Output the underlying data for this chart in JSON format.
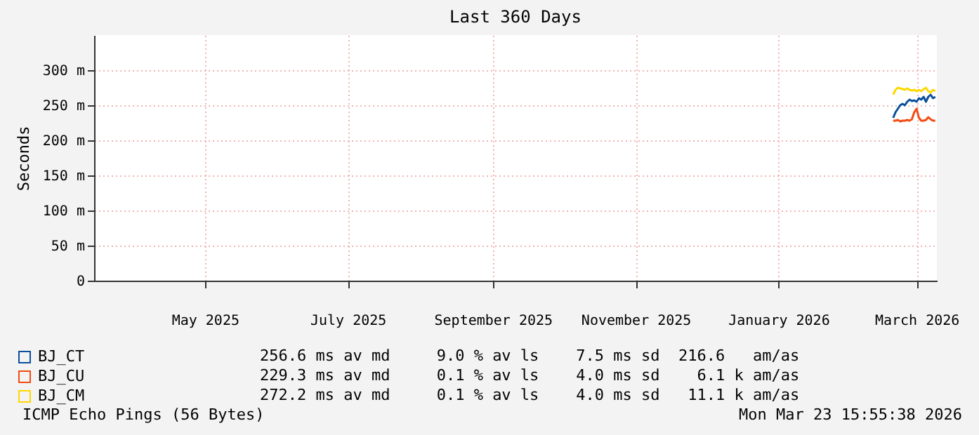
{
  "chart_data": {
    "type": "line",
    "title": "Last 360 Days",
    "ylabel": "Seconds",
    "x": [
      "2026-03-05",
      "2026-03-06",
      "2026-03-07",
      "2026-03-08",
      "2026-03-09",
      "2026-03-10",
      "2026-03-11",
      "2026-03-12",
      "2026-03-13",
      "2026-03-14",
      "2026-03-15",
      "2026-03-16",
      "2026-03-17",
      "2026-03-18",
      "2026-03-19",
      "2026-03-20",
      "2026-03-21",
      "2026-03-22",
      "2026-03-23"
    ],
    "series": [
      {
        "name": "BJ_CT",
        "color": "#0b4f9c",
        "values": [
          232,
          240,
          245,
          250,
          252,
          250,
          255,
          258,
          256,
          257,
          255,
          260,
          258,
          262,
          255,
          262,
          265,
          260,
          262
        ]
      },
      {
        "name": "BJ_CU",
        "color": "#f24b12",
        "values": [
          228,
          228,
          229,
          227,
          228,
          228,
          229,
          228,
          230,
          240,
          245,
          232,
          228,
          228,
          229,
          233,
          230,
          228,
          228
        ]
      },
      {
        "name": "BJ_CM",
        "color": "#ffd800",
        "values": [
          265,
          272,
          275,
          274,
          273,
          272,
          274,
          272,
          271,
          272,
          270,
          272,
          270,
          273,
          275,
          270,
          268,
          272,
          270
        ]
      }
    ],
    "xlim": [
      "2025-03-28T15:55",
      "2026-03-23T15:55"
    ],
    "xticks": [
      {
        "value": "2025-05-15",
        "label": "May 2025"
      },
      {
        "value": "2025-07-15",
        "label": "July 2025"
      },
      {
        "value": "2025-09-15",
        "label": "September 2025"
      },
      {
        "value": "2025-11-15",
        "label": "November 2025"
      },
      {
        "value": "2026-01-15",
        "label": "January 2026"
      },
      {
        "value": "2026-03-15",
        "label": "March 2026"
      }
    ],
    "ylim": [
      0,
      350
    ],
    "yticks": [
      0,
      {
        "value": 50,
        "label": "50 m"
      },
      {
        "value": 100,
        "label": "100 m"
      },
      {
        "value": 150,
        "label": "150 m"
      },
      {
        "value": 200,
        "label": "200 m"
      },
      {
        "value": 250,
        "label": "250 m"
      },
      {
        "value": 300,
        "label": "300 m"
      }
    ],
    "grid": true,
    "legend": "bottom left",
    "marker": "none",
    "line_style": "solid",
    "annotations": [
      "256.6 ms av md     9.0 % av ls    7.5 ms sd  216.6   am/as",
      "229.3 ms av md     0.1 % av ls    4.0 ms sd    6.1 k am/as",
      "272.2 ms av md     0.1 % av ls    4.0 ms sd   11.1 k am/as",
      "ICMP Echo Pings (56 Bytes)",
      "Mon Mar 23 15:55:38 2026"
    ]
  }
}
